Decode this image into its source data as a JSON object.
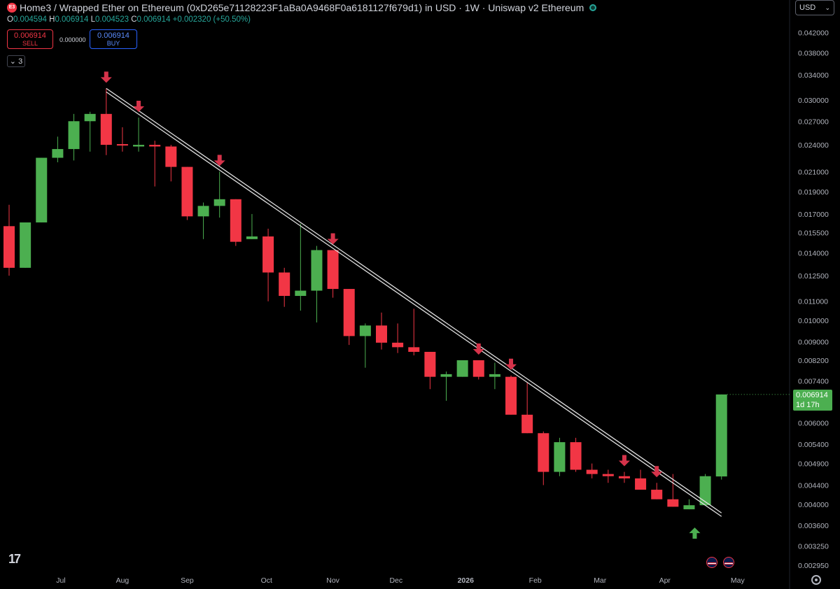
{
  "header": {
    "logo_text": "E3",
    "title": "Home3 / Wrapped Ether on Ethereum (0xD265e71128223F1aBa0A9468F0a6181127f679d1) in USD · 1W · Uniswap v2 Ethereum",
    "ohlc": {
      "o_label": "O",
      "o": "0.004594",
      "h_label": "H",
      "h": "0.006914",
      "l_label": "L",
      "l": "0.004523",
      "c_label": "C",
      "c": "0.006914",
      "change": "+0.002320 (+50.50%)"
    }
  },
  "trade": {
    "sell_price": "0.006914",
    "sell_label": "SELL",
    "spread": "0.000000",
    "buy_price": "0.006914",
    "buy_label": "BUY"
  },
  "indicators_collapse": "3",
  "currency": {
    "value": "USD",
    "icon": "chevron-down-icon"
  },
  "last_price": {
    "value": "0.006914",
    "countdown": "1d 17h",
    "color": "#4caf50"
  },
  "colors": {
    "up": "#4caf50",
    "down": "#f23645",
    "trendline": "#e0e0e0",
    "arrow_down": "#d6334a",
    "arrow_up": "#4caf50"
  },
  "chart_data": {
    "type": "candlestick",
    "y_scale": "log",
    "ylim": [
      0.00285,
      0.0445
    ],
    "y_ticks": [
      "0.042000",
      "0.038000",
      "0.034000",
      "0.030000",
      "0.027000",
      "0.024000",
      "0.021000",
      "0.019000",
      "0.017000",
      "0.015500",
      "0.014000",
      "0.012500",
      "0.011000",
      "0.010000",
      "0.009000",
      "0.008200",
      "0.007400",
      "0.006000",
      "0.005400",
      "0.004900",
      "0.004400",
      "0.004000",
      "0.003600",
      "0.003250",
      "0.002950"
    ],
    "x_ticks": [
      "Jul",
      "Aug",
      "Sep",
      "Oct",
      "Nov",
      "Dec",
      "2026",
      "Feb",
      "Mar",
      "Apr",
      "May"
    ],
    "candles": [
      {
        "o": 0.016,
        "h": 0.0178,
        "l": 0.0125,
        "c": 0.013
      },
      {
        "o": 0.013,
        "h": 0.0163,
        "l": 0.013,
        "c": 0.0163
      },
      {
        "o": 0.0163,
        "h": 0.0225,
        "l": 0.0163,
        "c": 0.0225
      },
      {
        "o": 0.0225,
        "h": 0.025,
        "l": 0.022,
        "c": 0.0235
      },
      {
        "o": 0.0235,
        "h": 0.028,
        "l": 0.0222,
        "c": 0.027
      },
      {
        "o": 0.027,
        "h": 0.0283,
        "l": 0.0232,
        "c": 0.028
      },
      {
        "o": 0.028,
        "h": 0.0318,
        "l": 0.0228,
        "c": 0.024
      },
      {
        "o": 0.024,
        "h": 0.0262,
        "l": 0.0232,
        "c": 0.0239
      },
      {
        "o": 0.0238,
        "h": 0.0275,
        "l": 0.0232,
        "c": 0.024
      },
      {
        "o": 0.024,
        "h": 0.0245,
        "l": 0.0195,
        "c": 0.0238
      },
      {
        "o": 0.0238,
        "h": 0.024,
        "l": 0.02,
        "c": 0.0215
      },
      {
        "o": 0.0215,
        "h": 0.0215,
        "l": 0.0165,
        "c": 0.0168
      },
      {
        "o": 0.0168,
        "h": 0.018,
        "l": 0.015,
        "c": 0.0177
      },
      {
        "o": 0.0177,
        "h": 0.021,
        "l": 0.0167,
        "c": 0.0183
      },
      {
        "o": 0.0183,
        "h": 0.0183,
        "l": 0.0145,
        "c": 0.0148
      },
      {
        "o": 0.015,
        "h": 0.017,
        "l": 0.015,
        "c": 0.0152
      },
      {
        "o": 0.0152,
        "h": 0.0158,
        "l": 0.011,
        "c": 0.0127
      },
      {
        "o": 0.0127,
        "h": 0.013,
        "l": 0.0107,
        "c": 0.0113
      },
      {
        "o": 0.0113,
        "h": 0.0162,
        "l": 0.0105,
        "c": 0.0116
      },
      {
        "o": 0.0116,
        "h": 0.0145,
        "l": 0.0099,
        "c": 0.0142
      },
      {
        "o": 0.0142,
        "h": 0.0142,
        "l": 0.0112,
        "c": 0.0117
      },
      {
        "o": 0.0117,
        "h": 0.0117,
        "l": 0.00885,
        "c": 0.00925
      },
      {
        "o": 0.00925,
        "h": 0.00985,
        "l": 0.0079,
        "c": 0.00975
      },
      {
        "o": 0.00975,
        "h": 0.0104,
        "l": 0.00865,
        "c": 0.00895
      },
      {
        "o": 0.00895,
        "h": 0.00985,
        "l": 0.0085,
        "c": 0.00875
      },
      {
        "o": 0.00875,
        "h": 0.0106,
        "l": 0.0084,
        "c": 0.00855
      },
      {
        "o": 0.00855,
        "h": 0.00855,
        "l": 0.0071,
        "c": 0.00755
      },
      {
        "o": 0.00755,
        "h": 0.00775,
        "l": 0.0067,
        "c": 0.00765
      },
      {
        "o": 0.00755,
        "h": 0.0082,
        "l": 0.00755,
        "c": 0.0082
      },
      {
        "o": 0.0082,
        "h": 0.0082,
        "l": 0.00745,
        "c": 0.00755
      },
      {
        "o": 0.00755,
        "h": 0.0081,
        "l": 0.0071,
        "c": 0.00765
      },
      {
        "o": 0.00755,
        "h": 0.0076,
        "l": 0.00625,
        "c": 0.00625
      },
      {
        "o": 0.00625,
        "h": 0.00735,
        "l": 0.0057,
        "c": 0.0057
      },
      {
        "o": 0.0057,
        "h": 0.00575,
        "l": 0.0044,
        "c": 0.0047
      },
      {
        "o": 0.0047,
        "h": 0.00557,
        "l": 0.0046,
        "c": 0.00545
      },
      {
        "o": 0.00545,
        "h": 0.00557,
        "l": 0.0047,
        "c": 0.00475
      },
      {
        "o": 0.00475,
        "h": 0.0049,
        "l": 0.00455,
        "c": 0.00465
      },
      {
        "o": 0.00465,
        "h": 0.00475,
        "l": 0.00445,
        "c": 0.0046
      },
      {
        "o": 0.0046,
        "h": 0.0047,
        "l": 0.00445,
        "c": 0.00455
      },
      {
        "o": 0.00455,
        "h": 0.00475,
        "l": 0.0043,
        "c": 0.0043
      },
      {
        "o": 0.0043,
        "h": 0.00445,
        "l": 0.0041,
        "c": 0.0041
      },
      {
        "o": 0.0041,
        "h": 0.00465,
        "l": 0.00395,
        "c": 0.00395
      },
      {
        "o": 0.0039,
        "h": 0.0041,
        "l": 0.0039,
        "c": 0.00398
      },
      {
        "o": 0.00398,
        "h": 0.00465,
        "l": 0.00398,
        "c": 0.0046
      },
      {
        "o": 0.004594,
        "h": 0.006914,
        "l": 0.004523,
        "c": 0.006914
      }
    ],
    "trendline": {
      "from": {
        "candle": 6,
        "price": 0.0318
      },
      "to": {
        "candle": 44,
        "price": 0.00383
      }
    },
    "down_arrow_candles": [
      6,
      8,
      13,
      20,
      29,
      31,
      38,
      40
    ],
    "up_arrow_candles": [
      42
    ]
  }
}
